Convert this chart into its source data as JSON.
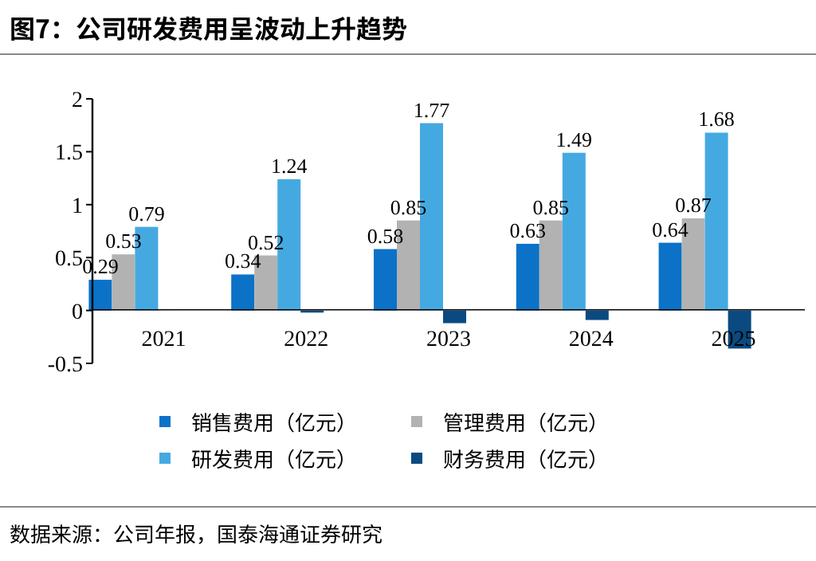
{
  "chart_data": {
    "type": "bar",
    "title": "图7：公司研发费用呈波动上升趋势",
    "categories": [
      "2021",
      "2022",
      "2023",
      "2024",
      "2025"
    ],
    "series": [
      {
        "name": "销售费用（亿元）",
        "color": "#0b72c8",
        "values": [
          0.29,
          0.34,
          0.58,
          0.63,
          0.64
        ],
        "value_labels": [
          "0.29",
          "0.34",
          "0.58",
          "0.63",
          "0.64"
        ]
      },
      {
        "name": "管理费用（亿元）",
        "color": "#b2b2b2",
        "values": [
          0.53,
          0.52,
          0.85,
          0.85,
          0.87
        ],
        "value_labels": [
          "0.53",
          "0.52",
          "0.85",
          "0.85",
          "0.87"
        ]
      },
      {
        "name": "研发费用（亿元）",
        "color": "#45a9e1",
        "values": [
          0.79,
          1.24,
          1.77,
          1.49,
          1.68
        ],
        "value_labels": [
          "0.79",
          "1.24",
          "1.77",
          "1.49",
          "1.68"
        ]
      },
      {
        "name": "财务费用（亿元）",
        "color": "#0a4a80",
        "values": [
          0,
          -0.02,
          -0.12,
          -0.09,
          -0.36
        ]
      }
    ],
    "ylim": [
      -0.5,
      2
    ],
    "yticks": [
      -0.5,
      0,
      0.5,
      1,
      1.5,
      2
    ],
    "legend": "bottom",
    "annotations": [
      "数据来源：公司年报，国泰海通证券研究"
    ]
  }
}
